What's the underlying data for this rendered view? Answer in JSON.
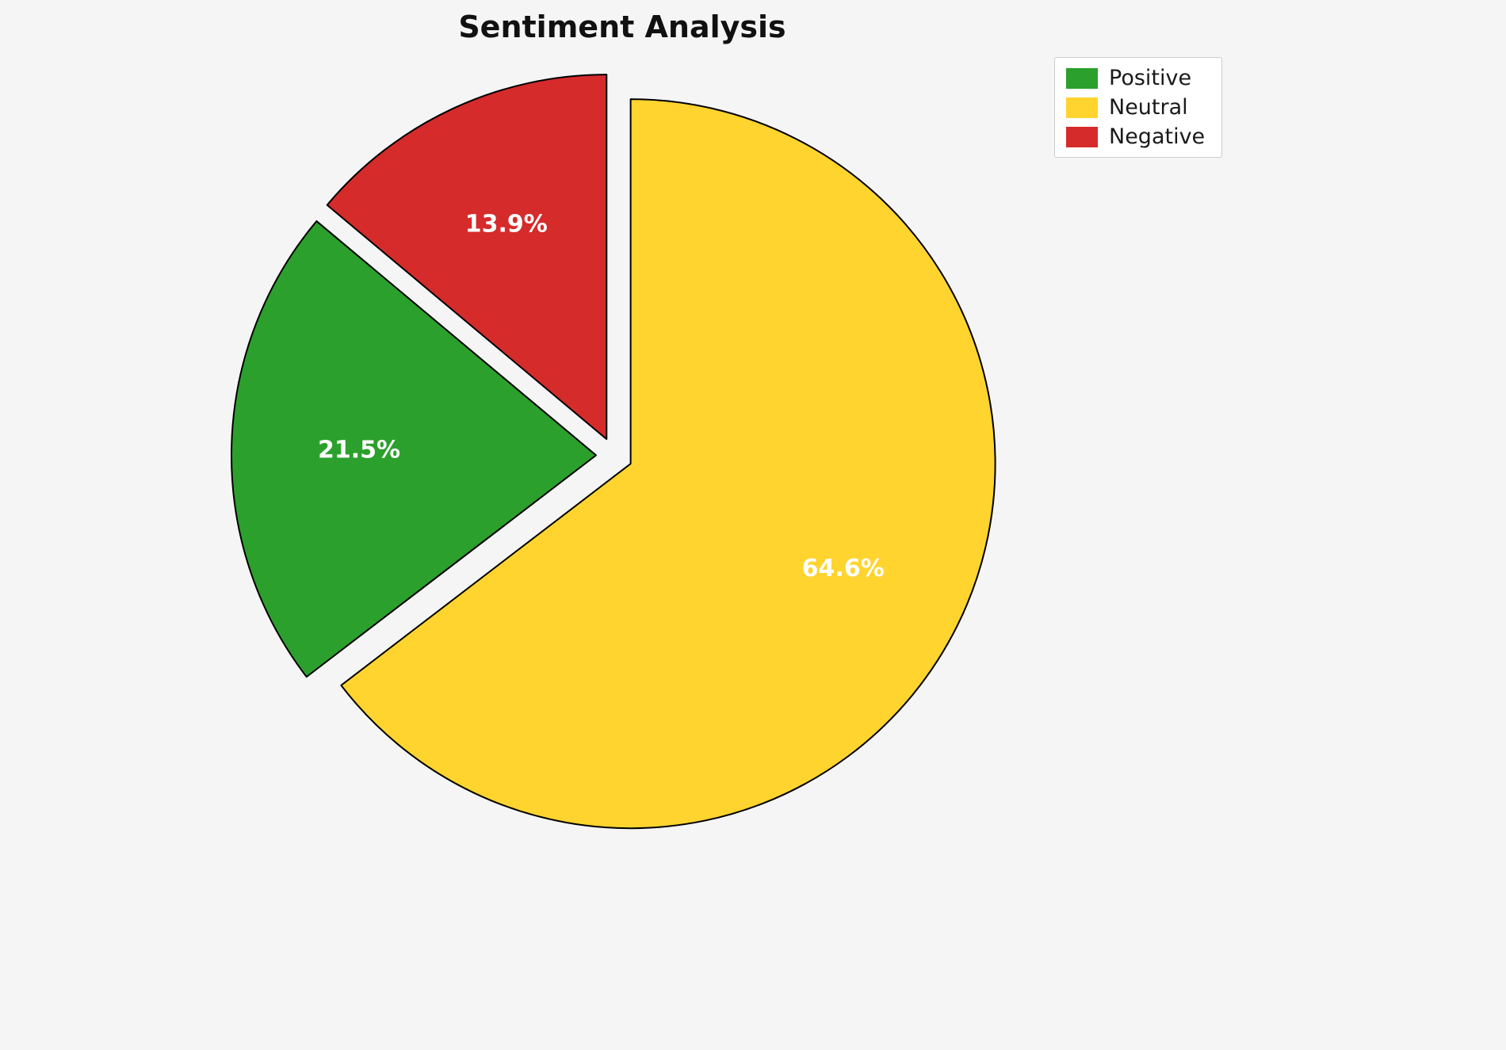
{
  "page": {
    "background": "#f5f5f5"
  },
  "chart_data": {
    "type": "pie",
    "title": "Sentiment Analysis",
    "labels": [
      "Positive",
      "Neutral",
      "Negative"
    ],
    "values": [
      21.5,
      64.6,
      13.9
    ],
    "value_labels": [
      "21.5%",
      "64.6%",
      "13.9%"
    ],
    "colors": {
      "Positive": "#2ca02c",
      "Neutral": "#ffd42e",
      "Negative": "#d62b2b"
    },
    "legend": {
      "position": "upper right",
      "items": [
        "Positive",
        "Neutral",
        "Negative"
      ]
    },
    "startangle": 90,
    "clockwise": true,
    "draw_order": [
      "Neutral",
      "Positive",
      "Negative"
    ],
    "explode": 0.05,
    "edge_color": "#000000",
    "label_color": "#ffffff"
  }
}
